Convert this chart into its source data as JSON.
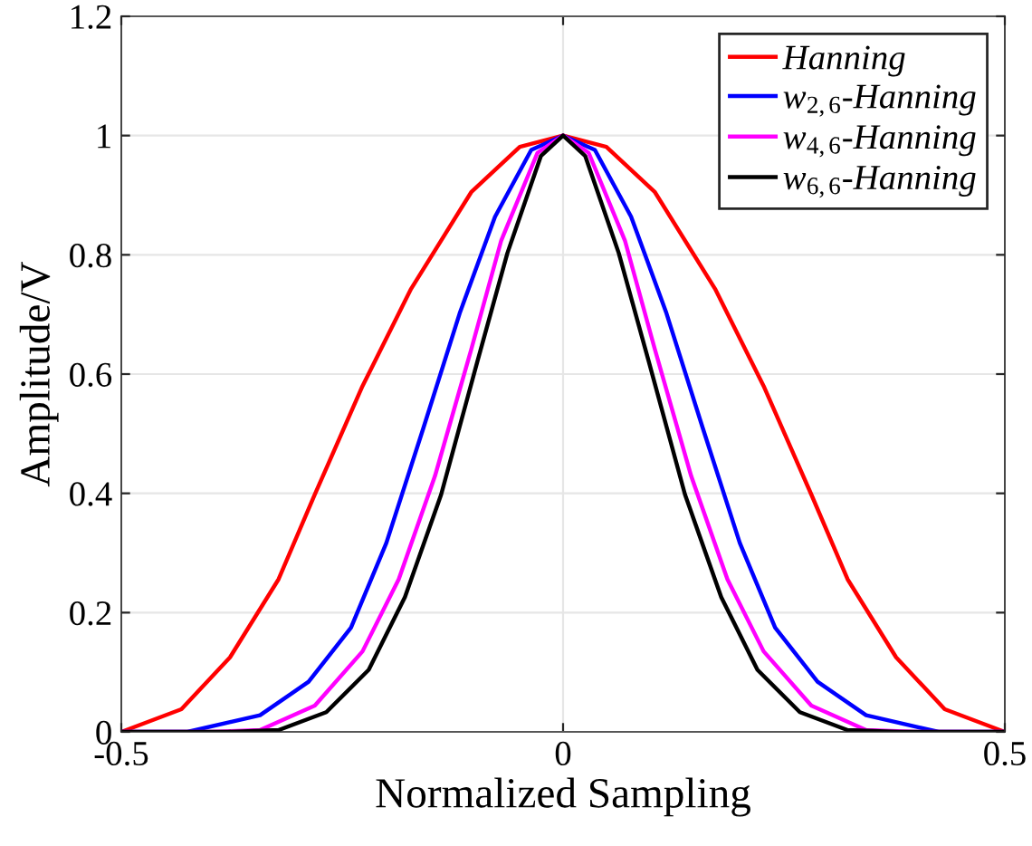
{
  "chart_data": {
    "type": "line",
    "xlabel": "Normalized Sampling",
    "ylabel": "Amplitude/V",
    "xlim": [
      -0.5,
      0.5
    ],
    "xticks": [
      -0.5,
      0,
      0.5
    ],
    "ylim": [
      0,
      1.2
    ],
    "yticks": [
      0,
      0.2,
      0.4,
      0.6,
      {
        "value": 0.8,
        "label": "0.8"
      },
      1,
      1.2
    ],
    "grid": true,
    "legend": "top right",
    "line_style": "solid",
    "marker": "none",
    "series": [
      {
        "name": "Hanning",
        "color": "#ff0000",
        "x": [
          -0.5,
          -0.432,
          -0.377,
          -0.322,
          -0.281,
          -0.227,
          -0.172,
          -0.104,
          -0.049,
          0,
          0.049,
          0.104,
          0.172,
          0.227,
          0.281,
          0.322,
          0.377,
          0.432,
          0.5
        ],
        "values": [
          0,
          0.038,
          0.125,
          0.256,
          0.398,
          0.58,
          0.743,
          0.905,
          0.981,
          1,
          0.981,
          0.905,
          0.743,
          0.58,
          0.398,
          0.256,
          0.125,
          0.038,
          0
        ]
      },
      {
        "name": "w$_{2,6}$-Hanning",
        "color": "#0000ff",
        "x": [
          -0.5,
          -0.425,
          -0.343,
          -0.288,
          -0.24,
          -0.2,
          -0.158,
          -0.117,
          -0.077,
          -0.036,
          0,
          0.036,
          0.077,
          0.117,
          0.158,
          0.2,
          0.24,
          0.288,
          0.343,
          0.425,
          0.5
        ],
        "values": [
          0,
          0,
          0.028,
          0.084,
          0.175,
          0.317,
          0.51,
          0.702,
          0.864,
          0.976,
          1,
          0.976,
          0.864,
          0.702,
          0.51,
          0.317,
          0.175,
          0.084,
          0.028,
          0,
          0
        ]
      },
      {
        "name": "w$_{4,6}$-Hanning",
        "color": "#ff00ff",
        "x": [
          -0.5,
          -0.4,
          -0.343,
          -0.281,
          -0.227,
          -0.186,
          -0.145,
          -0.104,
          -0.07,
          -0.029,
          0,
          0.029,
          0.07,
          0.104,
          0.145,
          0.186,
          0.227,
          0.281,
          0.343,
          0.4,
          0.5
        ],
        "values": [
          0,
          0,
          0.003,
          0.044,
          0.135,
          0.256,
          0.429,
          0.641,
          0.824,
          0.971,
          1,
          0.971,
          0.824,
          0.641,
          0.429,
          0.256,
          0.135,
          0.044,
          0.003,
          0,
          0
        ]
      },
      {
        "name": "w$_{6,6}$-Hanning",
        "color": "#000000",
        "x": [
          -0.5,
          -0.38,
          -0.322,
          -0.268,
          -0.22,
          -0.179,
          -0.138,
          -0.097,
          -0.063,
          -0.025,
          0,
          0.025,
          0.063,
          0.097,
          0.138,
          0.179,
          0.22,
          0.268,
          0.322,
          0.38,
          0.5
        ],
        "values": [
          0,
          0,
          0.003,
          0.033,
          0.104,
          0.226,
          0.398,
          0.621,
          0.803,
          0.966,
          1,
          0.966,
          0.803,
          0.621,
          0.398,
          0.226,
          0.104,
          0.033,
          0.003,
          0,
          0
        ]
      }
    ]
  }
}
